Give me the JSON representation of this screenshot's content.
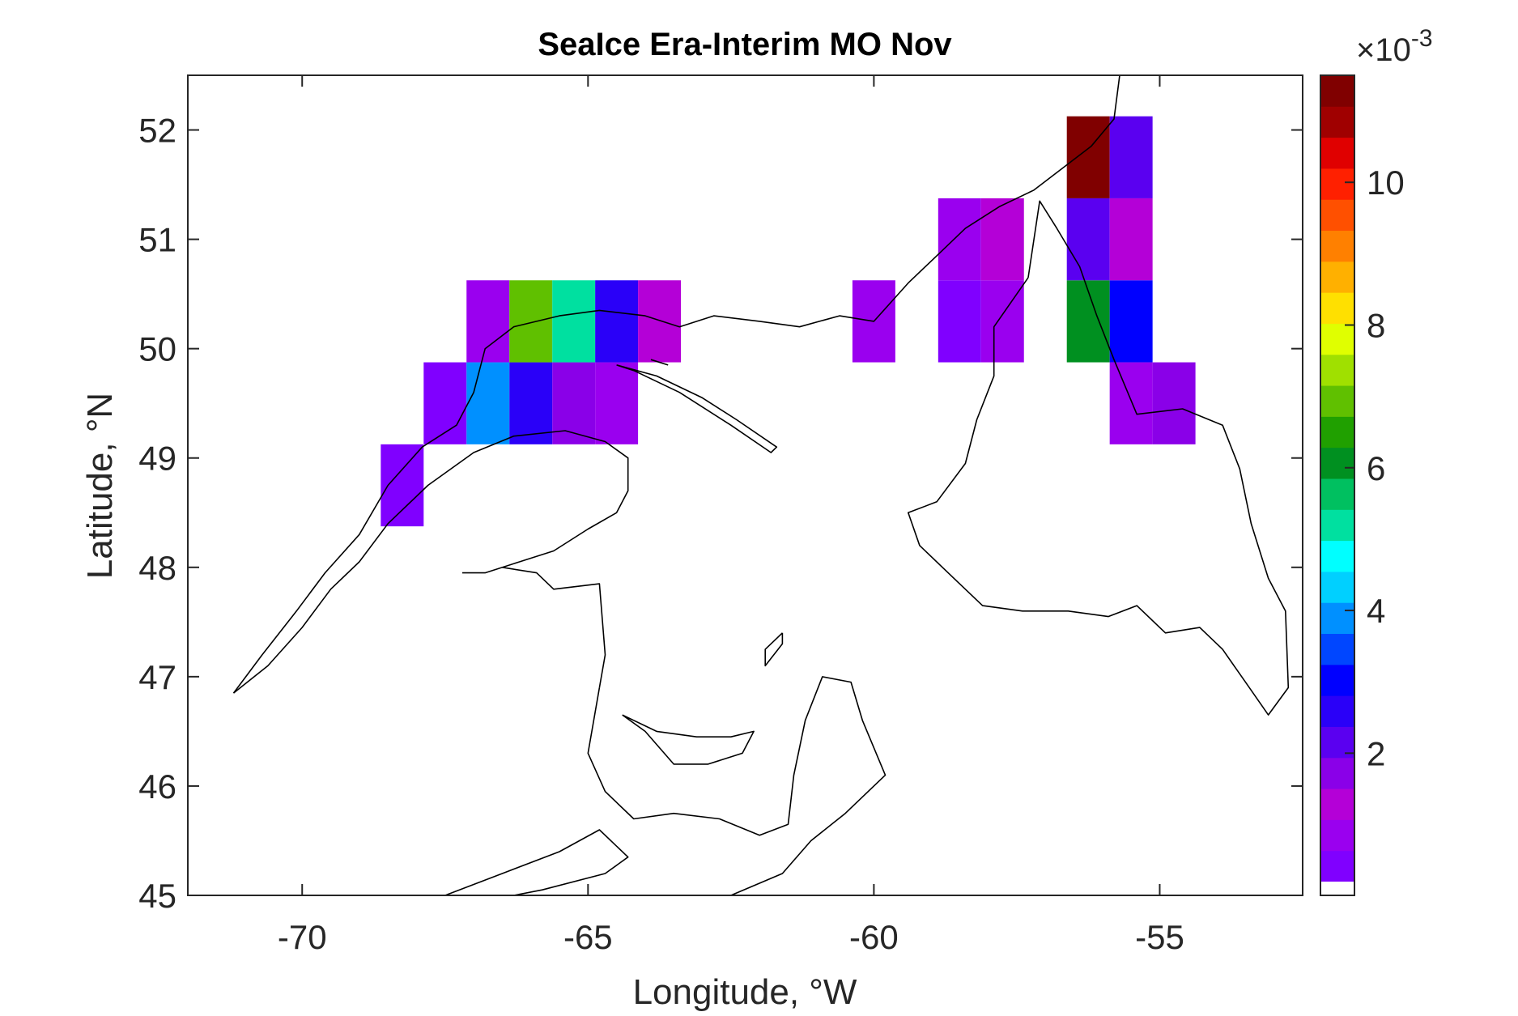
{
  "title": "SeaIce Era-Interim MO Nov",
  "xlabel": "Longitude, °W",
  "ylabel": "Latitude, °N",
  "colorbar": {
    "exponent_base": "×10",
    "exponent_power": "-3",
    "tick_labels": [
      "2",
      "4",
      "6",
      "8",
      "10"
    ],
    "tick_values": [
      2,
      4,
      6,
      8,
      10
    ],
    "range": [
      0.2,
      11.5
    ],
    "colormap": [
      "#8000ff",
      "#9a00ef",
      "#b400d7",
      "#8a00e8",
      "#5a00f0",
      "#2a00f8",
      "#0000ff",
      "#0046ff",
      "#0090ff",
      "#00d0ff",
      "#00ffff",
      "#00e0a0",
      "#00c060",
      "#009020",
      "#20a000",
      "#60c000",
      "#a0e000",
      "#e0ff00",
      "#ffe000",
      "#ffb000",
      "#ff8000",
      "#ff5000",
      "#ff2000",
      "#e00000",
      "#a00000",
      "#800000"
    ],
    "nan_color": "#ffffff"
  },
  "chart_data": {
    "type": "heatmap",
    "title": "SeaIce Era-Interim MO Nov",
    "xlabel": "Longitude, °W",
    "ylabel": "Latitude, °N",
    "xlim": [
      -72,
      -52.5
    ],
    "ylim": [
      45,
      52.5
    ],
    "xticks": [
      -70,
      -65,
      -60,
      -55
    ],
    "yticks": [
      45,
      46,
      47,
      48,
      49,
      50,
      51,
      52
    ],
    "grid": false,
    "value_scale": "x10^-3",
    "cell_size": {
      "dlon": 0.75,
      "dlat": 0.75
    },
    "cells": [
      {
        "lon": -68.25,
        "lat": 48.75,
        "value": 0.6
      },
      {
        "lon": -67.5,
        "lat": 49.5,
        "value": 0.6
      },
      {
        "lon": -66.75,
        "lat": 49.5,
        "value": 3.8
      },
      {
        "lon": -66.0,
        "lat": 49.5,
        "value": 2.5
      },
      {
        "lon": -65.25,
        "lat": 49.5,
        "value": 1.6
      },
      {
        "lon": -64.5,
        "lat": 49.5,
        "value": 0.8
      },
      {
        "lon": -66.75,
        "lat": 50.25,
        "value": 1.0
      },
      {
        "lon": -66.0,
        "lat": 50.25,
        "value": 6.8
      },
      {
        "lon": -65.25,
        "lat": 50.25,
        "value": 5.0
      },
      {
        "lon": -64.5,
        "lat": 50.25,
        "value": 2.4
      },
      {
        "lon": -63.75,
        "lat": 50.25,
        "value": 1.3
      },
      {
        "lon": -60.0,
        "lat": 50.25,
        "value": 0.7
      },
      {
        "lon": -58.5,
        "lat": 50.25,
        "value": 0.6
      },
      {
        "lon": -57.75,
        "lat": 50.25,
        "value": 0.7
      },
      {
        "lon": -58.5,
        "lat": 51.0,
        "value": 1.0
      },
      {
        "lon": -57.75,
        "lat": 51.0,
        "value": 1.3
      },
      {
        "lon": -56.25,
        "lat": 50.25,
        "value": 6.0
      },
      {
        "lon": -55.5,
        "lat": 50.25,
        "value": 2.9
      },
      {
        "lon": -56.25,
        "lat": 51.0,
        "value": 2.3
      },
      {
        "lon": -55.5,
        "lat": 51.0,
        "value": 1.1
      },
      {
        "lon": -56.25,
        "lat": 51.75,
        "value": 11.5
      },
      {
        "lon": -55.5,
        "lat": 51.75,
        "value": 2.3
      },
      {
        "lon": -55.5,
        "lat": 49.5,
        "value": 0.9
      },
      {
        "lon": -54.75,
        "lat": 49.5,
        "value": 1.6
      }
    ]
  },
  "coastlines": [
    [
      [
        -71.2,
        46.85
      ],
      [
        -70.6,
        47.1
      ],
      [
        -70.0,
        47.45
      ],
      [
        -69.5,
        47.8
      ],
      [
        -69.0,
        48.05
      ],
      [
        -68.5,
        48.4
      ],
      [
        -67.8,
        48.75
      ],
      [
        -67.0,
        49.05
      ],
      [
        -66.3,
        49.2
      ],
      [
        -65.4,
        49.25
      ],
      [
        -64.7,
        49.15
      ],
      [
        -64.3,
        49.0
      ],
      [
        -64.3,
        48.7
      ],
      [
        -64.5,
        48.5
      ],
      [
        -65.0,
        48.35
      ],
      [
        -65.6,
        48.15
      ],
      [
        -66.2,
        48.05
      ],
      [
        -66.8,
        47.95
      ],
      [
        -67.2,
        47.95
      ]
    ],
    [
      [
        -71.2,
        46.85
      ],
      [
        -70.7,
        47.2
      ],
      [
        -70.1,
        47.6
      ],
      [
        -69.6,
        47.95
      ],
      [
        -69.0,
        48.3
      ],
      [
        -68.5,
        48.75
      ],
      [
        -67.9,
        49.1
      ],
      [
        -67.3,
        49.3
      ],
      [
        -67.0,
        49.6
      ],
      [
        -66.8,
        50.0
      ],
      [
        -66.3,
        50.2
      ],
      [
        -65.5,
        50.3
      ],
      [
        -64.8,
        50.35
      ],
      [
        -64.0,
        50.3
      ],
      [
        -63.4,
        50.2
      ],
      [
        -62.8,
        50.3
      ],
      [
        -62.0,
        50.25
      ],
      [
        -61.3,
        50.2
      ],
      [
        -60.6,
        50.3
      ],
      [
        -60.0,
        50.25
      ],
      [
        -59.4,
        50.6
      ],
      [
        -58.9,
        50.85
      ],
      [
        -58.4,
        51.1
      ],
      [
        -57.8,
        51.3
      ],
      [
        -57.2,
        51.45
      ],
      [
        -56.7,
        51.65
      ],
      [
        -56.2,
        51.85
      ],
      [
        -55.8,
        52.1
      ],
      [
        -55.7,
        52.5
      ]
    ],
    [
      [
        -64.5,
        49.85
      ],
      [
        -63.8,
        49.75
      ],
      [
        -63.0,
        49.55
      ],
      [
        -62.4,
        49.35
      ],
      [
        -61.7,
        49.1
      ],
      [
        -61.8,
        49.05
      ],
      [
        -62.5,
        49.3
      ],
      [
        -63.4,
        49.6
      ],
      [
        -64.2,
        49.8
      ],
      [
        -64.5,
        49.85
      ]
    ],
    [
      [
        -57.3,
        50.65
      ],
      [
        -57.9,
        50.2
      ],
      [
        -57.9,
        49.75
      ],
      [
        -58.2,
        49.35
      ],
      [
        -58.4,
        48.95
      ],
      [
        -58.9,
        48.6
      ],
      [
        -59.4,
        48.5
      ],
      [
        -59.2,
        48.2
      ],
      [
        -58.6,
        47.9
      ],
      [
        -58.1,
        47.65
      ],
      [
        -57.4,
        47.6
      ],
      [
        -56.6,
        47.6
      ],
      [
        -55.9,
        47.55
      ],
      [
        -55.4,
        47.65
      ],
      [
        -54.9,
        47.4
      ],
      [
        -54.3,
        47.45
      ],
      [
        -53.9,
        47.25
      ],
      [
        -53.5,
        46.95
      ],
      [
        -53.1,
        46.65
      ],
      [
        -52.75,
        46.9
      ],
      [
        -52.8,
        47.6
      ],
      [
        -53.1,
        47.9
      ],
      [
        -53.4,
        48.4
      ],
      [
        -53.6,
        48.9
      ],
      [
        -53.9,
        49.3
      ],
      [
        -54.6,
        49.45
      ],
      [
        -55.4,
        49.4
      ],
      [
        -55.8,
        49.9
      ],
      [
        -56.1,
        50.3
      ],
      [
        -56.4,
        50.75
      ],
      [
        -56.8,
        51.1
      ],
      [
        -57.1,
        51.35
      ],
      [
        -57.3,
        50.65
      ]
    ],
    [
      [
        -64.4,
        46.65
      ],
      [
        -63.8,
        46.5
      ],
      [
        -63.1,
        46.45
      ],
      [
        -62.5,
        46.45
      ],
      [
        -62.1,
        46.5
      ],
      [
        -62.3,
        46.3
      ],
      [
        -62.9,
        46.2
      ],
      [
        -63.5,
        46.2
      ],
      [
        -64.0,
        46.5
      ],
      [
        -64.4,
        46.65
      ]
    ],
    [
      [
        -61.6,
        47.4
      ],
      [
        -61.9,
        47.25
      ],
      [
        -61.9,
        47.1
      ],
      [
        -61.6,
        47.3
      ],
      [
        -61.6,
        47.4
      ]
    ],
    [
      [
        -64.8,
        46.9
      ],
      [
        -65.0,
        46.3
      ],
      [
        -64.7,
        45.95
      ],
      [
        -64.2,
        45.7
      ],
      [
        -63.5,
        45.75
      ],
      [
        -62.7,
        45.7
      ],
      [
        -62.0,
        45.55
      ],
      [
        -61.5,
        45.65
      ],
      [
        -61.4,
        46.1
      ],
      [
        -61.2,
        46.6
      ],
      [
        -60.9,
        47.0
      ],
      [
        -60.4,
        46.95
      ],
      [
        -60.2,
        46.6
      ],
      [
        -59.8,
        46.1
      ],
      [
        -60.5,
        45.75
      ],
      [
        -61.1,
        45.5
      ],
      [
        -61.6,
        45.2
      ],
      [
        -62.5,
        45.0
      ]
    ],
    [
      [
        -66.5,
        48.0
      ],
      [
        -65.9,
        47.95
      ],
      [
        -65.6,
        47.8
      ],
      [
        -64.8,
        47.85
      ],
      [
        -64.7,
        47.2
      ],
      [
        -64.8,
        46.9
      ]
    ],
    [
      [
        -67.5,
        45.0
      ],
      [
        -66.5,
        45.2
      ],
      [
        -65.5,
        45.4
      ],
      [
        -64.8,
        45.6
      ],
      [
        -64.3,
        45.35
      ],
      [
        -64.7,
        45.2
      ],
      [
        -65.8,
        45.05
      ],
      [
        -66.3,
        45.0
      ]
    ],
    [
      [
        -63.9,
        49.9
      ],
      [
        -63.6,
        49.85
      ]
    ]
  ]
}
